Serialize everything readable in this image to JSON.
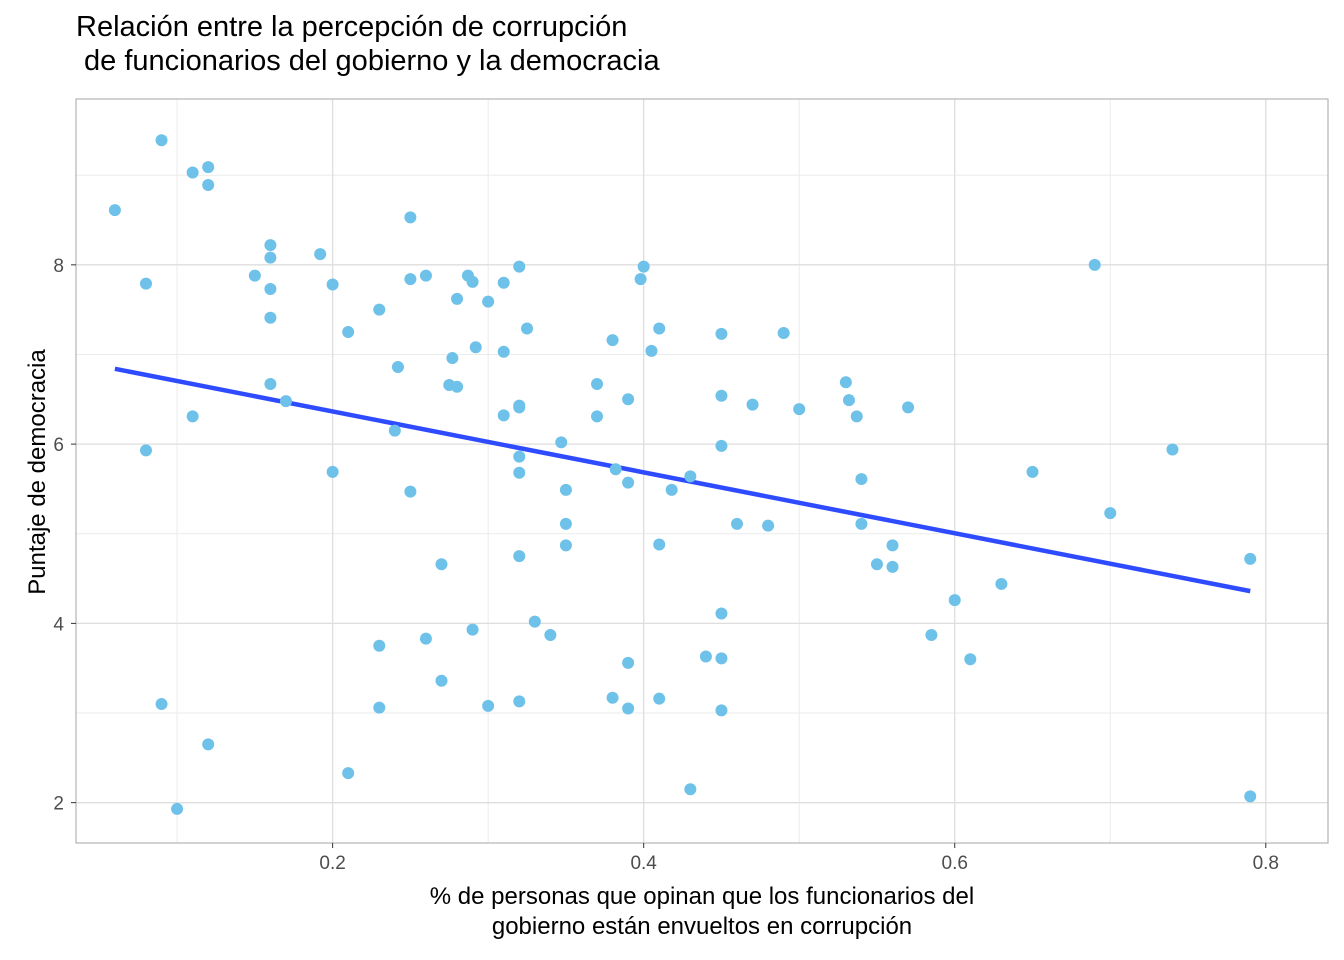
{
  "chart_data": {
    "type": "scatter",
    "title": "Relación entre la percepción de corrupción\n de funcionarios del gobierno y la democracia",
    "xlabel": "% de personas que opinan que los funcionarios del\ngobierno están envueltos en corrupción",
    "ylabel": "Puntaje de democracia",
    "xlim": [
      0.035,
      0.84
    ],
    "ylim": [
      1.55,
      9.85
    ],
    "x_ticks": [
      0.2,
      0.4,
      0.6,
      0.8
    ],
    "x_tick_labels": [
      "0.2",
      "0.4",
      "0.6",
      "0.8"
    ],
    "y_ticks": [
      2,
      4,
      6,
      8
    ],
    "y_tick_labels": [
      "2",
      "4",
      "6",
      "8"
    ],
    "grid": true,
    "point_color": "#6EC1E8",
    "trend_color": "#2E4BFF",
    "trend_line": {
      "x": [
        0.06,
        0.79
      ],
      "y": [
        6.84,
        4.36
      ]
    },
    "points": [
      {
        "x": 0.06,
        "y": 8.61
      },
      {
        "x": 0.08,
        "y": 7.79
      },
      {
        "x": 0.08,
        "y": 5.93
      },
      {
        "x": 0.09,
        "y": 9.39
      },
      {
        "x": 0.09,
        "y": 3.1
      },
      {
        "x": 0.1,
        "y": 1.93
      },
      {
        "x": 0.11,
        "y": 9.03
      },
      {
        "x": 0.11,
        "y": 6.31
      },
      {
        "x": 0.12,
        "y": 9.09
      },
      {
        "x": 0.12,
        "y": 8.89
      },
      {
        "x": 0.12,
        "y": 2.65
      },
      {
        "x": 0.15,
        "y": 7.88
      },
      {
        "x": 0.16,
        "y": 8.22
      },
      {
        "x": 0.16,
        "y": 8.08
      },
      {
        "x": 0.16,
        "y": 7.73
      },
      {
        "x": 0.16,
        "y": 7.41
      },
      {
        "x": 0.16,
        "y": 6.67
      },
      {
        "x": 0.17,
        "y": 6.48
      },
      {
        "x": 0.192,
        "y": 8.12
      },
      {
        "x": 0.2,
        "y": 7.78
      },
      {
        "x": 0.2,
        "y": 5.69
      },
      {
        "x": 0.21,
        "y": 7.25
      },
      {
        "x": 0.21,
        "y": 2.33
      },
      {
        "x": 0.23,
        "y": 7.5
      },
      {
        "x": 0.23,
        "y": 3.75
      },
      {
        "x": 0.23,
        "y": 3.06
      },
      {
        "x": 0.24,
        "y": 6.15
      },
      {
        "x": 0.242,
        "y": 6.86
      },
      {
        "x": 0.25,
        "y": 8.53
      },
      {
        "x": 0.25,
        "y": 7.84
      },
      {
        "x": 0.25,
        "y": 5.47
      },
      {
        "x": 0.26,
        "y": 7.88
      },
      {
        "x": 0.26,
        "y": 3.83
      },
      {
        "x": 0.27,
        "y": 4.66
      },
      {
        "x": 0.27,
        "y": 3.36
      },
      {
        "x": 0.275,
        "y": 6.66
      },
      {
        "x": 0.277,
        "y": 6.96
      },
      {
        "x": 0.28,
        "y": 7.62
      },
      {
        "x": 0.28,
        "y": 6.64
      },
      {
        "x": 0.287,
        "y": 7.88
      },
      {
        "x": 0.29,
        "y": 7.81
      },
      {
        "x": 0.29,
        "y": 3.93
      },
      {
        "x": 0.292,
        "y": 7.08
      },
      {
        "x": 0.3,
        "y": 7.59
      },
      {
        "x": 0.3,
        "y": 3.08
      },
      {
        "x": 0.31,
        "y": 7.8
      },
      {
        "x": 0.31,
        "y": 7.03
      },
      {
        "x": 0.31,
        "y": 6.32
      },
      {
        "x": 0.32,
        "y": 7.98
      },
      {
        "x": 0.32,
        "y": 6.43
      },
      {
        "x": 0.32,
        "y": 6.41
      },
      {
        "x": 0.32,
        "y": 5.86
      },
      {
        "x": 0.32,
        "y": 5.68
      },
      {
        "x": 0.32,
        "y": 4.75
      },
      {
        "x": 0.32,
        "y": 3.13
      },
      {
        "x": 0.325,
        "y": 7.29
      },
      {
        "x": 0.33,
        "y": 4.02
      },
      {
        "x": 0.34,
        "y": 3.87
      },
      {
        "x": 0.347,
        "y": 6.02
      },
      {
        "x": 0.35,
        "y": 5.49
      },
      {
        "x": 0.35,
        "y": 5.11
      },
      {
        "x": 0.35,
        "y": 4.87
      },
      {
        "x": 0.37,
        "y": 6.67
      },
      {
        "x": 0.37,
        "y": 6.31
      },
      {
        "x": 0.38,
        "y": 7.16
      },
      {
        "x": 0.38,
        "y": 3.17
      },
      {
        "x": 0.382,
        "y": 5.72
      },
      {
        "x": 0.39,
        "y": 6.5
      },
      {
        "x": 0.39,
        "y": 5.57
      },
      {
        "x": 0.39,
        "y": 3.56
      },
      {
        "x": 0.39,
        "y": 3.05
      },
      {
        "x": 0.398,
        "y": 7.84
      },
      {
        "x": 0.4,
        "y": 7.98
      },
      {
        "x": 0.405,
        "y": 7.04
      },
      {
        "x": 0.41,
        "y": 7.29
      },
      {
        "x": 0.41,
        "y": 4.88
      },
      {
        "x": 0.41,
        "y": 3.16
      },
      {
        "x": 0.418,
        "y": 5.49
      },
      {
        "x": 0.43,
        "y": 5.64
      },
      {
        "x": 0.43,
        "y": 2.15
      },
      {
        "x": 0.44,
        "y": 3.63
      },
      {
        "x": 0.45,
        "y": 7.23
      },
      {
        "x": 0.45,
        "y": 6.54
      },
      {
        "x": 0.45,
        "y": 5.98
      },
      {
        "x": 0.45,
        "y": 4.11
      },
      {
        "x": 0.45,
        "y": 3.61
      },
      {
        "x": 0.45,
        "y": 3.03
      },
      {
        "x": 0.46,
        "y": 5.11
      },
      {
        "x": 0.47,
        "y": 6.44
      },
      {
        "x": 0.48,
        "y": 5.09
      },
      {
        "x": 0.49,
        "y": 7.24
      },
      {
        "x": 0.5,
        "y": 6.39
      },
      {
        "x": 0.53,
        "y": 6.69
      },
      {
        "x": 0.532,
        "y": 6.49
      },
      {
        "x": 0.537,
        "y": 6.31
      },
      {
        "x": 0.54,
        "y": 5.61
      },
      {
        "x": 0.54,
        "y": 5.11
      },
      {
        "x": 0.55,
        "y": 4.66
      },
      {
        "x": 0.56,
        "y": 4.87
      },
      {
        "x": 0.56,
        "y": 4.63
      },
      {
        "x": 0.57,
        "y": 6.41
      },
      {
        "x": 0.585,
        "y": 3.87
      },
      {
        "x": 0.6,
        "y": 4.26
      },
      {
        "x": 0.61,
        "y": 3.6
      },
      {
        "x": 0.63,
        "y": 4.44
      },
      {
        "x": 0.65,
        "y": 5.69
      },
      {
        "x": 0.69,
        "y": 8.0
      },
      {
        "x": 0.7,
        "y": 5.23
      },
      {
        "x": 0.74,
        "y": 5.94
      },
      {
        "x": 0.79,
        "y": 4.72
      },
      {
        "x": 0.79,
        "y": 2.07
      }
    ]
  }
}
